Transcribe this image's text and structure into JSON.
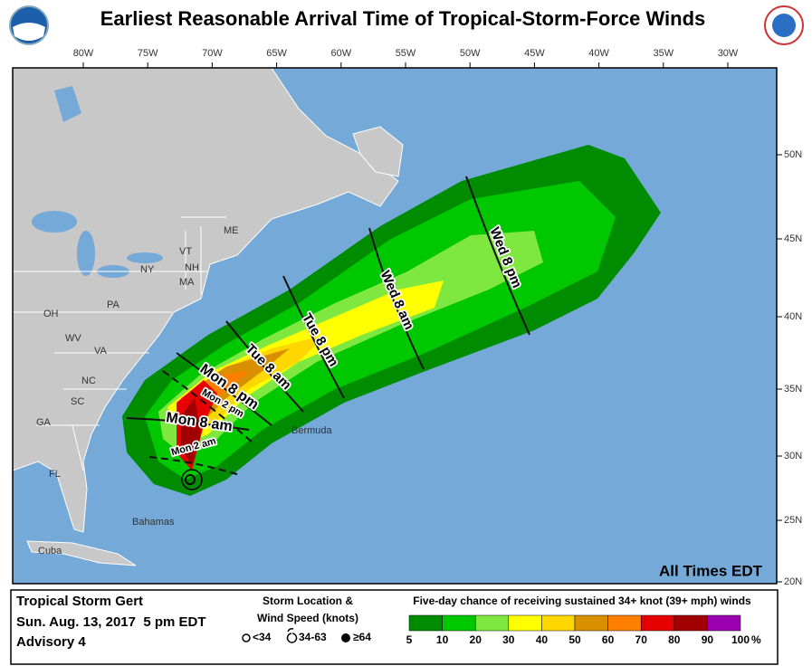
{
  "header": {
    "title": "Earliest Reasonable Arrival Time of Tropical-Storm-Force Winds"
  },
  "map": {
    "longitude_labels": [
      "80W",
      "75W",
      "70W",
      "65W",
      "60W",
      "55W",
      "50W",
      "45W",
      "40W",
      "35W",
      "30W"
    ],
    "latitude_labels": [
      "50N",
      "45N",
      "40N",
      "35N",
      "30N",
      "25N",
      "20N"
    ],
    "places": [
      "ME",
      "VT",
      "NH",
      "NY",
      "MA",
      "PA",
      "OH",
      "WV",
      "VA",
      "NC",
      "SC",
      "GA",
      "FL",
      "Bermuda",
      "Bahamas",
      "Cuba"
    ],
    "times": [
      "Wed 8 pm",
      "Wed 8 am",
      "Tue 8 pm",
      "Tue 8 am",
      "Mon 8 pm",
      "Mon 2 pm",
      "Mon 8 am",
      "Mon 2 am"
    ],
    "note": "All Times EDT"
  },
  "legend": {
    "storm": "Tropical Storm Gert",
    "date": "Sun. Aug. 13, 2017  5 pm EDT",
    "advisory": "Advisory 4",
    "location_title": "Storm Location &",
    "location_subtitle": "Wind Speed (knots)",
    "symbols": [
      "<34",
      "34-63",
      "≥64"
    ],
    "scale_title": "Five-day chance of receiving sustained 34+ knot (39+ mph) winds",
    "scale_labels": [
      5,
      10,
      20,
      30,
      40,
      50,
      60,
      70,
      80,
      90,
      100
    ],
    "scale_unit": "%",
    "scale_colors": [
      "#008c00",
      "#00c800",
      "#7ee840",
      "#ffff00",
      "#ffd700",
      "#d89000",
      "#ff7f00",
      "#e60000",
      "#a00000",
      "#9b00b0"
    ]
  }
}
